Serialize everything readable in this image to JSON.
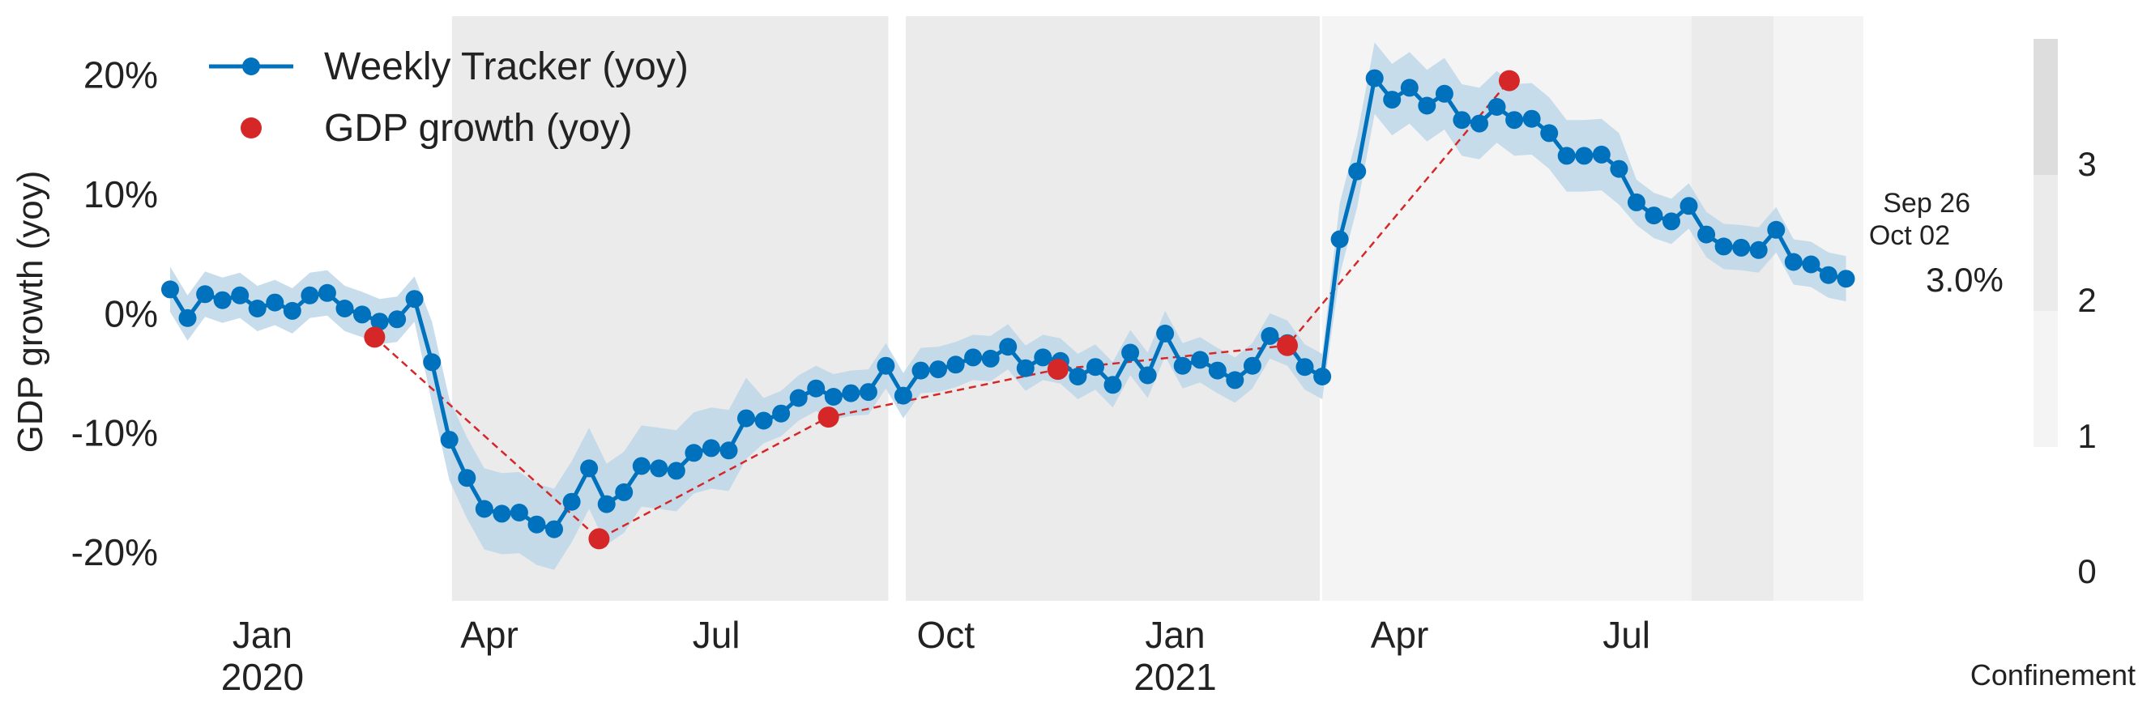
{
  "chart_data": {
    "type": "line",
    "ylabel": "GDP growth (yoy)",
    "ylim": [
      -24,
      25
    ],
    "xlim": [
      "2019-11-25",
      "2021-10-04"
    ],
    "y_ticks": [
      -20,
      -10,
      0,
      10,
      20
    ],
    "y_tick_labels": [
      "-20%",
      "-10%",
      "0%",
      "10%",
      "20%"
    ],
    "x_ticks": [
      {
        "date": "2020-01-01",
        "label": "Jan",
        "year": "2020"
      },
      {
        "date": "2020-04-01",
        "label": "Apr",
        "year": ""
      },
      {
        "date": "2020-07-01",
        "label": "Jul",
        "year": ""
      },
      {
        "date": "2020-10-01",
        "label": "Oct",
        "year": ""
      },
      {
        "date": "2021-01-01",
        "label": "Jan",
        "year": "2021"
      },
      {
        "date": "2021-04-01",
        "label": "Apr",
        "year": ""
      },
      {
        "date": "2021-07-01",
        "label": "Jul",
        "year": ""
      }
    ],
    "grid": false,
    "legend_position": "top-left",
    "series": [
      {
        "name": "Weekly Tracker (yoy)",
        "color": "#0072bd",
        "band_color": "#bdd7e7",
        "points": [
          [
            "2019-11-25",
            2.1
          ],
          [
            "2019-12-02",
            -0.3
          ],
          [
            "2019-12-09",
            1.7
          ],
          [
            "2019-12-16",
            1.2
          ],
          [
            "2019-12-23",
            1.6
          ],
          [
            "2019-12-30",
            0.5
          ],
          [
            "2020-01-06",
            1.0
          ],
          [
            "2020-01-13",
            0.3
          ],
          [
            "2020-01-20",
            1.6
          ],
          [
            "2020-01-27",
            1.8
          ],
          [
            "2020-02-03",
            0.5
          ],
          [
            "2020-02-10",
            0.0
          ],
          [
            "2020-02-17",
            -0.6
          ],
          [
            "2020-02-24",
            -0.4
          ],
          [
            "2020-03-02",
            1.3
          ],
          [
            "2020-03-09",
            -4.0
          ],
          [
            "2020-03-16",
            -10.5
          ],
          [
            "2020-03-23",
            -13.7
          ],
          [
            "2020-03-30",
            -16.3
          ],
          [
            "2020-04-06",
            -16.7
          ],
          [
            "2020-04-13",
            -16.6
          ],
          [
            "2020-04-20",
            -17.6
          ],
          [
            "2020-04-27",
            -18.0
          ],
          [
            "2020-05-04",
            -15.7
          ],
          [
            "2020-05-11",
            -12.9
          ],
          [
            "2020-05-18",
            -15.9
          ],
          [
            "2020-05-25",
            -14.9
          ],
          [
            "2020-06-01",
            -12.7
          ],
          [
            "2020-06-08",
            -12.9
          ],
          [
            "2020-06-15",
            -13.1
          ],
          [
            "2020-06-22",
            -11.6
          ],
          [
            "2020-06-29",
            -11.2
          ],
          [
            "2020-07-06",
            -11.4
          ],
          [
            "2020-07-13",
            -8.7
          ],
          [
            "2020-07-20",
            -8.9
          ],
          [
            "2020-07-27",
            -8.3
          ],
          [
            "2020-08-03",
            -7.0
          ],
          [
            "2020-08-10",
            -6.2
          ],
          [
            "2020-08-17",
            -6.9
          ],
          [
            "2020-08-24",
            -6.6
          ],
          [
            "2020-08-31",
            -6.5
          ],
          [
            "2020-09-07",
            -4.3
          ],
          [
            "2020-09-14",
            -6.8
          ],
          [
            "2020-09-21",
            -4.7
          ],
          [
            "2020-09-28",
            -4.6
          ],
          [
            "2020-10-05",
            -4.2
          ],
          [
            "2020-10-12",
            -3.6
          ],
          [
            "2020-10-19",
            -3.7
          ],
          [
            "2020-10-26",
            -2.7
          ],
          [
            "2020-11-02",
            -4.5
          ],
          [
            "2020-11-09",
            -3.6
          ],
          [
            "2020-11-16",
            -3.9
          ],
          [
            "2020-11-23",
            -5.2
          ],
          [
            "2020-11-30",
            -4.4
          ],
          [
            "2020-12-07",
            -5.9
          ],
          [
            "2020-12-14",
            -3.2
          ],
          [
            "2020-12-21",
            -5.1
          ],
          [
            "2020-12-28",
            -1.6
          ],
          [
            "2021-01-04",
            -4.3
          ],
          [
            "2021-01-11",
            -3.8
          ],
          [
            "2021-01-18",
            -4.7
          ],
          [
            "2021-01-25",
            -5.5
          ],
          [
            "2021-02-01",
            -4.3
          ],
          [
            "2021-02-08",
            -1.8
          ],
          [
            "2021-02-15",
            -2.4
          ],
          [
            "2021-02-22",
            -4.4
          ],
          [
            "2021-03-01",
            -5.2
          ],
          [
            "2021-03-08",
            6.3
          ],
          [
            "2021-03-15",
            12.0
          ],
          [
            "2021-03-22",
            19.8
          ],
          [
            "2021-03-29",
            18.0
          ],
          [
            "2021-04-05",
            19.0
          ],
          [
            "2021-04-12",
            17.5
          ],
          [
            "2021-04-19",
            18.5
          ],
          [
            "2021-04-26",
            16.3
          ],
          [
            "2021-05-03",
            16.0
          ],
          [
            "2021-05-10",
            17.4
          ],
          [
            "2021-05-17",
            16.3
          ],
          [
            "2021-05-24",
            16.4
          ],
          [
            "2021-05-31",
            15.2
          ],
          [
            "2021-06-07",
            13.3
          ],
          [
            "2021-06-14",
            13.3
          ],
          [
            "2021-06-21",
            13.4
          ],
          [
            "2021-06-28",
            12.2
          ],
          [
            "2021-07-05",
            9.4
          ],
          [
            "2021-07-12",
            8.3
          ],
          [
            "2021-07-19",
            7.8
          ],
          [
            "2021-07-26",
            9.1
          ],
          [
            "2021-08-02",
            6.7
          ],
          [
            "2021-08-09",
            5.7
          ],
          [
            "2021-08-16",
            5.6
          ],
          [
            "2021-08-23",
            5.4
          ],
          [
            "2021-08-30",
            7.1
          ],
          [
            "2021-09-06",
            4.4
          ],
          [
            "2021-09-13",
            4.2
          ],
          [
            "2021-09-20",
            3.3
          ],
          [
            "2021-09-27",
            3.0
          ]
        ]
      },
      {
        "name": "GDP growth (yoy)",
        "color": "#d62728",
        "points": [
          [
            "2020-02-15",
            -1.9
          ],
          [
            "2020-05-15",
            -18.8
          ],
          [
            "2020-08-15",
            -8.6
          ],
          [
            "2020-11-15",
            -4.6
          ],
          [
            "2021-02-15",
            -2.6
          ],
          [
            "2021-05-15",
            19.6
          ]
        ]
      }
    ],
    "confinement_periods": [
      {
        "start": "2020-03-17",
        "end": "2020-09-08",
        "level": 2
      },
      {
        "start": "2020-09-15",
        "end": "2021-02-28",
        "level": 2
      },
      {
        "start": "2021-03-01",
        "end": "2021-07-27",
        "level": 1
      },
      {
        "start": "2021-07-27",
        "end": "2021-08-29",
        "level": 2
      },
      {
        "start": "2021-08-29",
        "end": "2021-10-04",
        "level": 1
      }
    ],
    "annotation": {
      "line1": "Sep 26",
      "line2": "Oct 02",
      "value": "3.0%"
    },
    "colorbar": {
      "label": "Confinement",
      "ticks": [
        "0",
        "1",
        "2",
        "3"
      ],
      "colors": [
        "#ffffff",
        "#f4f4f4",
        "#ebebeb",
        "#dddddd"
      ]
    }
  }
}
